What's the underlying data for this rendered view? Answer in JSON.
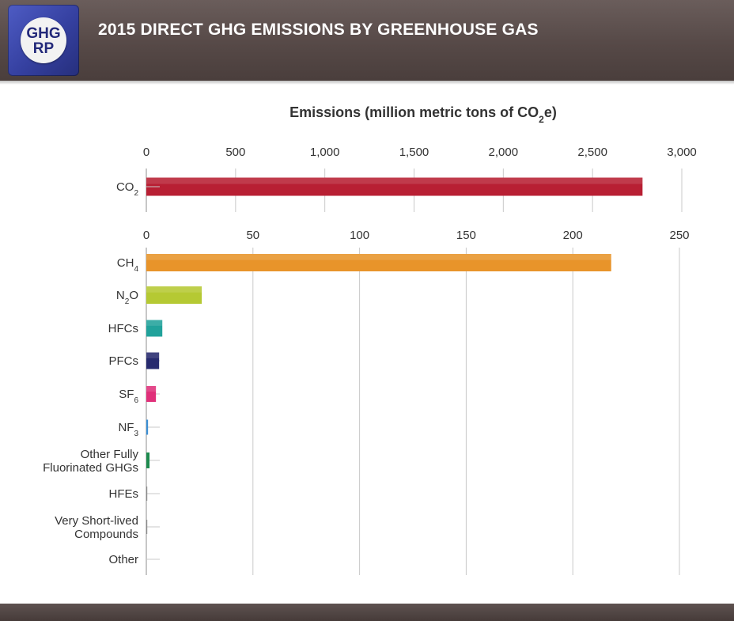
{
  "header": {
    "title": "2015 DIRECT GHG EMISSIONS BY GREENHOUSE GAS",
    "logo": {
      "line1": "GHG",
      "line2": "RP"
    }
  },
  "chart_data": [
    {
      "type": "bar",
      "orientation": "horizontal",
      "title": "Emissions (million metric tons of CO2e)",
      "title_parts": {
        "main": "Emissions (million metric tons of CO",
        "sub": "2",
        "tail": "e)"
      },
      "xlim": [
        0,
        3000
      ],
      "ticks": [
        "0",
        "500",
        "1,000",
        "1,500",
        "2,000",
        "2,500",
        "3,000"
      ],
      "tick_values": [
        0,
        500,
        1000,
        1500,
        2000,
        2500,
        3000
      ],
      "categories": [
        {
          "label": "CO",
          "sub": "2",
          "value": 2780,
          "color": "#b81f33"
        }
      ]
    },
    {
      "type": "bar",
      "orientation": "horizontal",
      "xlim": [
        0,
        250
      ],
      "ticks": [
        "0",
        "50",
        "100",
        "150",
        "200",
        "250"
      ],
      "tick_values": [
        0,
        50,
        100,
        150,
        200,
        250
      ],
      "categories": [
        {
          "label": "CH",
          "sub": "4",
          "value": 218,
          "color": "#e8942a"
        },
        {
          "label": "N",
          "sub": "2",
          "tail": "O",
          "value": 26,
          "color": "#b5c933"
        },
        {
          "label": "HFCs",
          "value": 7.5,
          "color": "#21a29b"
        },
        {
          "label": "PFCs",
          "value": 6,
          "color": "#262a6e"
        },
        {
          "label": "SF",
          "sub": "6",
          "value": 4.5,
          "color": "#e0307a"
        },
        {
          "label": "NF",
          "sub": "3",
          "value": 0.8,
          "color": "#3b8fd4"
        },
        {
          "lines": [
            "Other Fully",
            "Fluorinated GHGs"
          ],
          "value": 1.5,
          "color": "#1e8a4e"
        },
        {
          "label": "HFEs",
          "value": 0.2,
          "color": "#8a8a8a"
        },
        {
          "lines": [
            "Very Short-lived",
            "Compounds"
          ],
          "value": 0.05,
          "color": "#8a8a8a"
        },
        {
          "label": "Other",
          "value": 0,
          "color": "#8a8a8a"
        }
      ]
    }
  ]
}
